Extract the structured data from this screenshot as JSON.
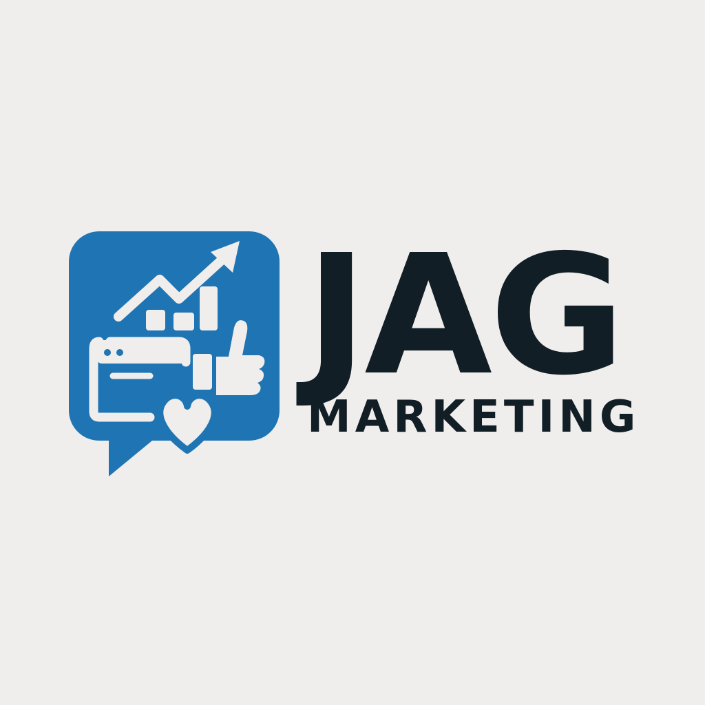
{
  "brand": {
    "name": "JAG",
    "tagline": "MARKETING"
  },
  "logo": {
    "icons": [
      "trend-arrow-icon",
      "bar-chart-icon",
      "browser-window-icon",
      "thumbs-up-icon",
      "heart-icon"
    ]
  },
  "colors": {
    "background": "#f0eeec",
    "accent_blue": "#1f74b3",
    "text_dark": "#121e25",
    "icon_light": "#f0eeec"
  }
}
